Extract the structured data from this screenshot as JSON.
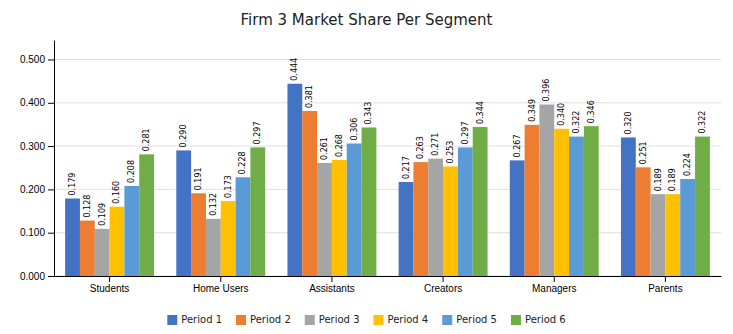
{
  "chart_data": {
    "type": "bar",
    "title": "Firm 3 Market Share Per Segment",
    "categories": [
      "Students",
      "Home Users",
      "Assistants",
      "Creators",
      "Managers",
      "Parents"
    ],
    "series": [
      {
        "name": "Period 1",
        "color": "#4472C4",
        "values": [
          0.179,
          0.29,
          0.444,
          0.217,
          0.267,
          0.32
        ],
        "value_labels": [
          "0.179",
          "0.290",
          "0.444",
          "0.217",
          "0.267",
          "0.320"
        ]
      },
      {
        "name": "Period 2",
        "color": "#ED7D31",
        "values": [
          0.128,
          0.191,
          0.381,
          0.263,
          0.349,
          0.251
        ],
        "value_labels": [
          "0.128",
          "0.191",
          "0.381",
          "0.263",
          "0.349",
          "0.251"
        ]
      },
      {
        "name": "Period 3",
        "color": "#A5A5A5",
        "values": [
          0.109,
          0.132,
          0.261,
          0.271,
          0.396,
          0.189
        ],
        "value_labels": [
          "0.109",
          "0.132",
          "0.261",
          "0.271",
          "0.396",
          "0.189"
        ]
      },
      {
        "name": "Period 4",
        "color": "#FFC000",
        "values": [
          0.16,
          0.173,
          0.268,
          0.253,
          0.34,
          0.189
        ],
        "value_labels": [
          "0.160",
          "0.173",
          "0.268",
          "0.253",
          "0.340",
          "0.189"
        ]
      },
      {
        "name": "Period 5",
        "color": "#5B9BD5",
        "values": [
          0.208,
          0.228,
          0.306,
          0.297,
          0.322,
          0.224
        ],
        "value_labels": [
          "0.208",
          "0.228",
          "0.306",
          "0.297",
          "0.322",
          "0.224"
        ]
      },
      {
        "name": "Period 6",
        "color": "#70AD47",
        "values": [
          0.281,
          0.297,
          0.343,
          0.344,
          0.346,
          0.322
        ],
        "value_labels": [
          "0.281",
          "0.297",
          "0.343",
          "0.344",
          "0.346",
          "0.322"
        ]
      }
    ],
    "ylim": [
      0,
      0.545
    ],
    "yticks": [
      {
        "value": 0,
        "label": "0.000"
      },
      {
        "value": 0.1,
        "label": "0.100"
      },
      {
        "value": 0.2,
        "label": "0.200"
      },
      {
        "value": 0.3,
        "label": "0.300"
      },
      {
        "value": 0.4,
        "label": "0.400"
      },
      {
        "value": 0.5,
        "label": "0.500"
      }
    ],
    "grid": true,
    "legend": "bottom",
    "data_labels": true
  }
}
